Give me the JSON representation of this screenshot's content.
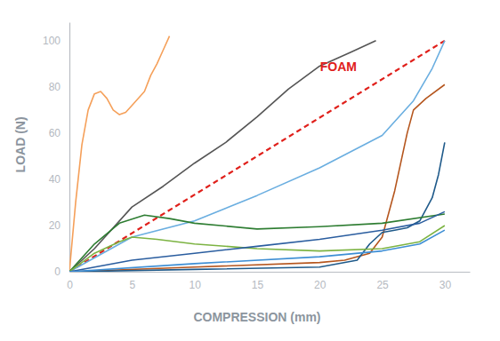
{
  "chart_data": {
    "type": "line",
    "x_label": "COMPRESSION (mm)",
    "y_label": "LOAD (N)",
    "xlim": [
      0,
      32
    ],
    "ylim": [
      0,
      108
    ],
    "xticks": [
      0,
      5,
      10,
      15,
      20,
      25,
      30
    ],
    "yticks": [
      0,
      20,
      40,
      60,
      80,
      100
    ],
    "grid": false,
    "annotations": [
      {
        "text": "FOAM",
        "x": 21.5,
        "y": 87,
        "color": "#e0201b"
      }
    ],
    "series": [
      {
        "color": "#f5a05a",
        "line_style": "solid",
        "x": [
          0,
          0.5,
          1,
          1.5,
          2,
          2.5,
          3,
          3.5,
          4,
          4.5,
          5,
          6,
          6.5,
          7,
          7.5,
          8
        ],
        "values": [
          0,
          30,
          55,
          70,
          77,
          78,
          75,
          70,
          68,
          69,
          72,
          78,
          85,
          90,
          96,
          102
        ]
      },
      {
        "color": "#555555",
        "line_style": "solid",
        "x": [
          0,
          2,
          5,
          7.5,
          10,
          12.5,
          15,
          17.5,
          20,
          22.5,
          24.5
        ],
        "values": [
          0,
          10,
          28,
          37,
          47,
          56,
          67,
          79,
          89,
          95,
          100
        ]
      },
      {
        "color": "#e0201b",
        "line_style": "dashed",
        "x": [
          0,
          30
        ],
        "values": [
          0,
          100
        ]
      },
      {
        "color": "#6aaee0",
        "line_style": "solid",
        "x": [
          0,
          5,
          10,
          15,
          20,
          25,
          27.5,
          29,
          30
        ],
        "values": [
          0,
          15,
          22,
          33,
          45,
          59,
          74,
          88,
          100
        ]
      },
      {
        "color": "#b5561e",
        "line_style": "solid",
        "x": [
          0,
          10,
          20,
          22,
          24,
          25,
          26,
          27,
          27.5,
          28.5,
          30
        ],
        "values": [
          0,
          2,
          4,
          5,
          8,
          15,
          35,
          60,
          70,
          75,
          81
        ]
      },
      {
        "color": "#1f5a8a",
        "line_style": "solid",
        "x": [
          0,
          10,
          20,
          23,
          24,
          25,
          26,
          27,
          28,
          29,
          29.5,
          30
        ],
        "values": [
          0,
          1,
          2,
          5,
          12,
          17,
          18,
          19,
          22,
          32,
          42,
          56
        ]
      },
      {
        "color": "#2e7d32",
        "line_style": "solid",
        "x": [
          0,
          2,
          4,
          6,
          8,
          10,
          15,
          20,
          25,
          30
        ],
        "values": [
          0,
          12,
          21,
          24.5,
          23,
          21,
          18.5,
          19.5,
          21,
          25
        ]
      },
      {
        "color": "#7cb342",
        "line_style": "solid",
        "x": [
          0,
          2,
          4,
          5,
          7,
          10,
          15,
          20,
          25,
          28,
          30
        ],
        "values": [
          0,
          8,
          13,
          15,
          14,
          12,
          10,
          9,
          10,
          13,
          20
        ]
      },
      {
        "color": "#2a5d9f",
        "line_style": "solid",
        "x": [
          0,
          5,
          10,
          15,
          20,
          25,
          28,
          30
        ],
        "values": [
          0,
          5,
          8,
          11,
          14,
          18,
          21,
          26
        ]
      },
      {
        "color": "#3d8ed4",
        "line_style": "solid",
        "x": [
          0,
          10,
          20,
          25,
          28,
          30
        ],
        "values": [
          0,
          3.5,
          6.5,
          9,
          12,
          18
        ]
      }
    ]
  }
}
